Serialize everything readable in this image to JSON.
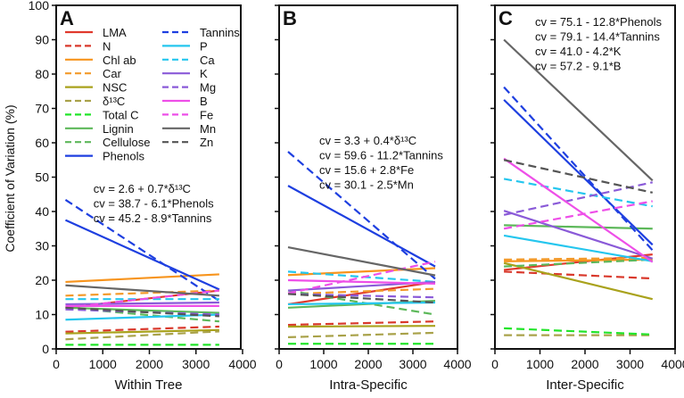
{
  "chart_data": {
    "type": "line",
    "ylabel": "Coefficient of Variation (%)",
    "ylim": [
      0,
      100
    ],
    "yticks": [
      0,
      10,
      20,
      30,
      40,
      50,
      60,
      70,
      80,
      90,
      100
    ],
    "xlim": [
      0,
      4000
    ],
    "xticks": [
      0,
      1000,
      2000,
      3000,
      4000
    ],
    "x": [
      200,
      3500
    ],
    "grid": false,
    "legend_placement": "top-left of panel A",
    "traits": [
      {
        "name": "LMA",
        "color": "#e0392d",
        "dash": false
      },
      {
        "name": "N",
        "color": "#d9392c",
        "dash": true
      },
      {
        "name": "Chl ab",
        "color": "#f7941d",
        "dash": false
      },
      {
        "name": "Car",
        "color": "#f39a2a",
        "dash": true
      },
      {
        "name": "NSC",
        "color": "#a9a21c",
        "dash": false
      },
      {
        "name": "δ¹³C",
        "color": "#a9a24a",
        "dash": true
      },
      {
        "name": "Total C",
        "color": "#22e52a",
        "dash": true
      },
      {
        "name": "Lignin",
        "color": "#5db85a",
        "dash": false
      },
      {
        "name": "Cellulose",
        "color": "#5db85a",
        "dash": true
      },
      {
        "name": "Phenols",
        "color": "#1e3fe0",
        "dash": false
      },
      {
        "name": "Tannins",
        "color": "#1e3fe0",
        "dash": true
      },
      {
        "name": "P",
        "color": "#25c6ee",
        "dash": false
      },
      {
        "name": "Ca",
        "color": "#25c6ee",
        "dash": true
      },
      {
        "name": "K",
        "color": "#8a5ad8",
        "dash": false
      },
      {
        "name": "Mg",
        "color": "#8a5ad8",
        "dash": true
      },
      {
        "name": "B",
        "color": "#ee4fe8",
        "dash": false
      },
      {
        "name": "Fe",
        "color": "#ee4fe8",
        "dash": true
      },
      {
        "name": "Mn",
        "color": "#666666",
        "dash": false
      },
      {
        "name": "Zn",
        "color": "#555555",
        "dash": true
      }
    ],
    "panels": [
      {
        "label": "A",
        "xlabel": "Within Tree",
        "equations": [
          "cv = 2.6 + 0.7*δ¹³C",
          "cv = 38.7 - 6.1*Phenols",
          "cv = 45.2 - 8.9*Tannins"
        ],
        "series": [
          [
            12,
            17
          ],
          [
            5,
            6.5
          ],
          [
            19.5,
            21.7
          ],
          [
            15.5,
            17
          ],
          [
            4.5,
            5.5
          ],
          [
            2.8,
            5.1
          ],
          [
            1.2,
            1.2
          ],
          [
            12,
            10.5
          ],
          [
            12,
            8
          ],
          [
            37.5,
            17.3
          ],
          [
            43.4,
            14
          ],
          [
            8.5,
            10
          ],
          [
            14.5,
            14.5
          ],
          [
            13,
            13.5
          ],
          [
            11.5,
            10
          ],
          [
            12.5,
            12.5
          ],
          [
            12,
            17
          ],
          [
            18.5,
            15.5
          ],
          [
            12,
            9.5
          ]
        ]
      },
      {
        "label": "B",
        "xlabel": "Intra-Specific",
        "equations": [
          "cv = 3.3 + 0.4*δ¹³C",
          "cv = 59.6 - 11.2*Tannins",
          "cv = 15.6 + 2.8*Fe",
          "cv = 30.1 - 2.5*Mn"
        ],
        "series": [
          [
            13,
            19.5
          ],
          [
            7,
            8
          ],
          [
            21.5,
            23.5
          ],
          [
            16,
            17.5
          ],
          [
            6.5,
            6.7
          ],
          [
            3.4,
            4.7
          ],
          [
            1.5,
            1.5
          ],
          [
            12,
            14
          ],
          [
            17,
            10
          ],
          [
            47.5,
            24
          ],
          [
            57.4,
            20.4
          ],
          [
            13,
            13.5
          ],
          [
            22.5,
            19.5
          ],
          [
            17,
            19.5
          ],
          [
            16,
            15
          ],
          [
            20,
            19
          ],
          [
            16.2,
            25.4
          ],
          [
            29.6,
            21.4
          ],
          [
            16,
            13.5
          ]
        ]
      },
      {
        "label": "C",
        "xlabel": "Inter-Specific",
        "equations": [
          "cv = 75.1 - 12.8*Phenols",
          "cv = 79.1 - 14.4*Tannins",
          "cv = 41.0 - 4.2*K",
          "cv = 57.2 - 9.1*B"
        ],
        "series": [
          [
            23,
            27.5
          ],
          [
            22.5,
            20.5
          ],
          [
            25.5,
            26
          ],
          [
            26,
            26.5
          ],
          [
            25,
            14.5
          ],
          [
            4,
            4
          ],
          [
            6,
            4.2
          ],
          [
            36,
            35
          ],
          [
            24,
            26
          ],
          [
            72.5,
            30.3
          ],
          [
            76.2,
            28.7
          ],
          [
            33,
            25.5
          ],
          [
            49.5,
            41.5
          ],
          [
            40.2,
            26.3
          ],
          [
            39,
            48.5
          ],
          [
            55.4,
            25.3
          ],
          [
            35,
            43
          ],
          [
            90,
            49
          ],
          [
            55,
            45.5
          ]
        ]
      }
    ]
  }
}
